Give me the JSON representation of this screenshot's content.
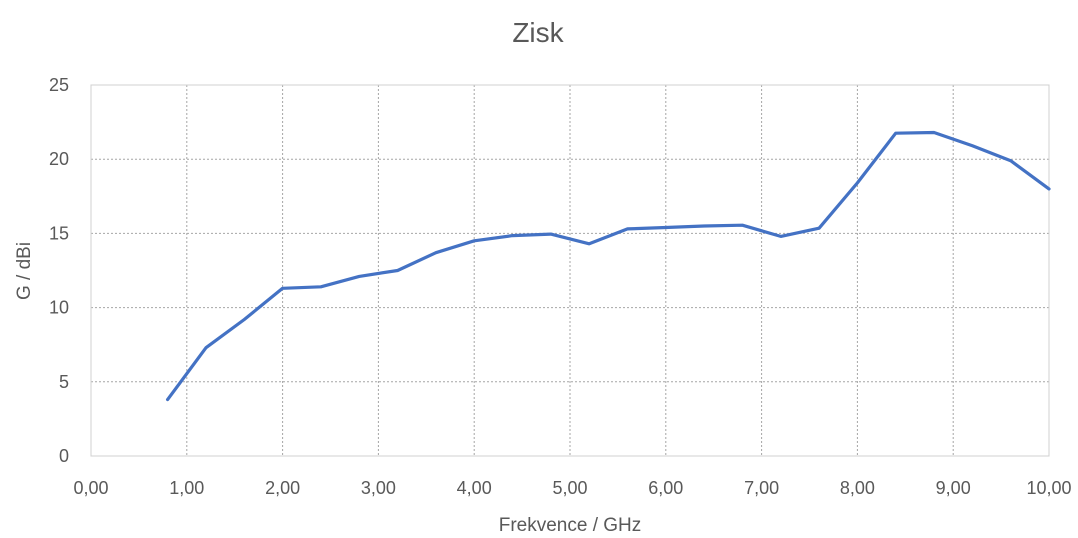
{
  "chart_data": {
    "type": "line",
    "title": "Zisk",
    "xlabel": "Frekvence / GHz",
    "ylabel": "G / dBi",
    "xlim": [
      0,
      10
    ],
    "ylim": [
      0,
      25
    ],
    "x_ticks": [
      0,
      1,
      2,
      3,
      4,
      5,
      6,
      7,
      8,
      9,
      10
    ],
    "x_tick_labels": [
      "0,00",
      "1,00",
      "2,00",
      "3,00",
      "4,00",
      "5,00",
      "6,00",
      "7,00",
      "8,00",
      "9,00",
      "10,00"
    ],
    "y_ticks": [
      0,
      5,
      10,
      15,
      20,
      25
    ],
    "y_tick_labels": [
      "0",
      "5",
      "10",
      "15",
      "20",
      "25"
    ],
    "grid": true,
    "legend": "none",
    "series": [
      {
        "color": "#4472C4",
        "x": [
          0.8,
          1.2,
          1.6,
          2.0,
          2.4,
          2.8,
          3.2,
          3.6,
          4.0,
          4.4,
          4.8,
          5.2,
          5.6,
          6.0,
          6.4,
          6.8,
          7.2,
          7.6,
          8.0,
          8.4,
          8.8,
          9.2,
          9.6,
          10.0
        ],
        "y": [
          3.8,
          7.3,
          9.2,
          11.3,
          11.4,
          12.1,
          12.5,
          13.7,
          14.5,
          14.85,
          14.95,
          14.3,
          15.3,
          15.4,
          15.5,
          15.55,
          14.8,
          15.35,
          18.4,
          21.75,
          21.8,
          20.9,
          19.9,
          18.0
        ]
      }
    ]
  }
}
